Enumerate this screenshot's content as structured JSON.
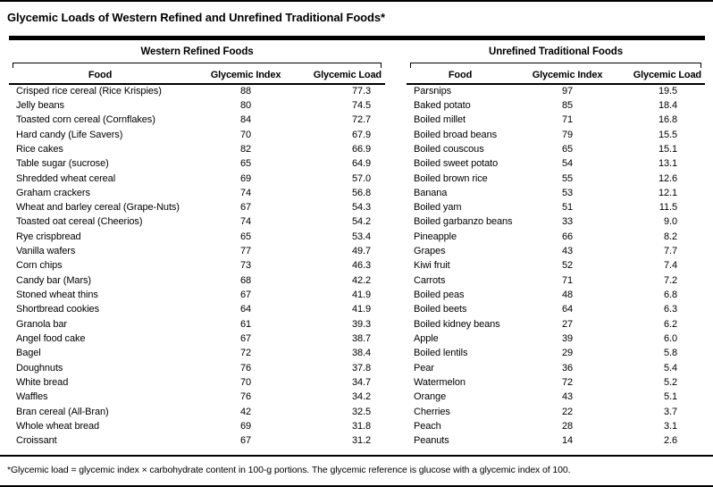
{
  "title": "Glycemic Loads of Western Refined and Unrefined Traditional Foods*",
  "footnote": "*Glycemic load = glycemic index × carbohydrate content in 100-g portions. The glycemic reference is glucose with a glycemic index of 100.",
  "tables": [
    {
      "group_header": "Western Refined Foods",
      "columns": [
        "Food",
        "Glycemic Index",
        "Glycemic Load"
      ],
      "rows": [
        [
          "Crisped rice cereal (Rice Krispies)",
          "88",
          "77.3"
        ],
        [
          "Jelly beans",
          "80",
          "74.5"
        ],
        [
          "Toasted corn cereal (Cornflakes)",
          "84",
          "72.7"
        ],
        [
          "Hard candy (Life Savers)",
          "70",
          "67.9"
        ],
        [
          "Rice cakes",
          "82",
          "66.9"
        ],
        [
          "Table sugar (sucrose)",
          "65",
          "64.9"
        ],
        [
          "Shredded wheat cereal",
          "69",
          "57.0"
        ],
        [
          "Graham crackers",
          "74",
          "56.8"
        ],
        [
          "Wheat and barley cereal (Grape-Nuts)",
          "67",
          "54.3"
        ],
        [
          "Toasted oat cereal (Cheerios)",
          "74",
          "54.2"
        ],
        [
          "Rye crispbread",
          "65",
          "53.4"
        ],
        [
          "Vanilla wafers",
          "77",
          "49.7"
        ],
        [
          "Corn chips",
          "73",
          "46.3"
        ],
        [
          "Candy bar (Mars)",
          "68",
          "42.2"
        ],
        [
          "Stoned wheat thins",
          "67",
          "41.9"
        ],
        [
          "Shortbread cookies",
          "64",
          "41.9"
        ],
        [
          "Granola bar",
          "61",
          "39.3"
        ],
        [
          "Angel food cake",
          "67",
          "38.7"
        ],
        [
          "Bagel",
          "72",
          "38.4"
        ],
        [
          "Doughnuts",
          "76",
          "37.8"
        ],
        [
          "White bread",
          "70",
          "34.7"
        ],
        [
          "Waffles",
          "76",
          "34.2"
        ],
        [
          "Bran cereal (All-Bran)",
          "42",
          "32.5"
        ],
        [
          "Whole wheat bread",
          "69",
          "31.8"
        ],
        [
          "Croissant",
          "67",
          "31.2"
        ]
      ]
    },
    {
      "group_header": "Unrefined Traditional Foods",
      "columns": [
        "Food",
        "Glycemic Index",
        "Glycemic Load"
      ],
      "rows": [
        [
          "Parsnips",
          "97",
          "19.5"
        ],
        [
          "Baked potato",
          "85",
          "18.4"
        ],
        [
          "Boiled millet",
          "71",
          "16.8"
        ],
        [
          "Boiled broad beans",
          "79",
          "15.5"
        ],
        [
          "Boiled couscous",
          "65",
          "15.1"
        ],
        [
          "Boiled sweet potato",
          "54",
          "13.1"
        ],
        [
          "Boiled brown rice",
          "55",
          "12.6"
        ],
        [
          "Banana",
          "53",
          "12.1"
        ],
        [
          "Boiled yam",
          "51",
          "11.5"
        ],
        [
          "Boiled garbanzo beans",
          "33",
          "9.0"
        ],
        [
          "Pineapple",
          "66",
          "8.2"
        ],
        [
          "Grapes",
          "43",
          "7.7"
        ],
        [
          "Kiwi fruit",
          "52",
          "7.4"
        ],
        [
          "Carrots",
          "71",
          "7.2"
        ],
        [
          "Boiled peas",
          "48",
          "6.8"
        ],
        [
          "Boiled beets",
          "64",
          "6.3"
        ],
        [
          "Boiled kidney beans",
          "27",
          "6.2"
        ],
        [
          "Apple",
          "39",
          "6.0"
        ],
        [
          "Boiled lentils",
          "29",
          "5.8"
        ],
        [
          "Pear",
          "36",
          "5.4"
        ],
        [
          "Watermelon",
          "72",
          "5.2"
        ],
        [
          "Orange",
          "43",
          "5.1"
        ],
        [
          "Cherries",
          "22",
          "3.7"
        ],
        [
          "Peach",
          "28",
          "3.1"
        ],
        [
          "Peanuts",
          "14",
          "2.6"
        ]
      ]
    }
  ]
}
